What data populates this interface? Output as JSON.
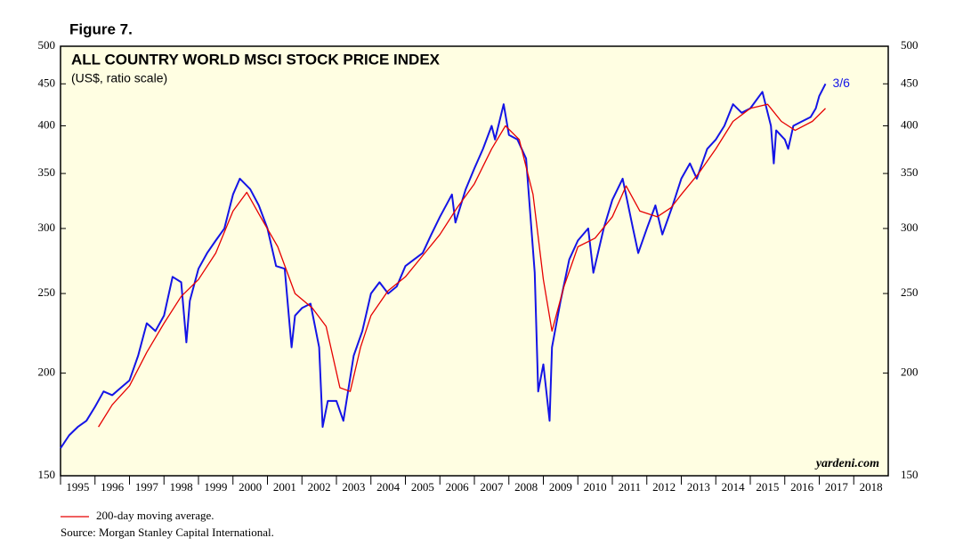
{
  "chart_data": {
    "type": "line",
    "figure_label": "Figure 7.",
    "title": "ALL COUNTRY WORLD MSCI STOCK PRICE INDEX",
    "subtitle": "(US$, ratio scale)",
    "annotation": "3/6",
    "watermark": "yardeni.com",
    "source": "Source: Morgan Stanley Capital International.",
    "log_scale": true,
    "xlim": [
      1995,
      2019
    ],
    "xticks": [
      {
        "value": 1995,
        "label": "1995"
      },
      {
        "value": 1996,
        "label": "1996"
      },
      {
        "value": 1997,
        "label": "1997"
      },
      {
        "value": 1998,
        "label": "1998"
      },
      {
        "value": 1999,
        "label": "1999"
      },
      {
        "value": 2000,
        "label": "2000"
      },
      {
        "value": 2001,
        "label": "2001"
      },
      {
        "value": 2002,
        "label": "2002"
      },
      {
        "value": 2003,
        "label": "2003"
      },
      {
        "value": 2004,
        "label": "2004"
      },
      {
        "value": 2005,
        "label": "2005"
      },
      {
        "value": 2006,
        "label": "2006"
      },
      {
        "value": 2007,
        "label": "2007"
      },
      {
        "value": 2008,
        "label": "2008"
      },
      {
        "value": 2009,
        "label": "2009"
      },
      {
        "value": 2010,
        "label": "2010"
      },
      {
        "value": 2011,
        "label": "2011"
      },
      {
        "value": 2012,
        "label": "2012"
      },
      {
        "value": 2013,
        "label": "2013"
      },
      {
        "value": 2014,
        "label": "2014"
      },
      {
        "value": 2015,
        "label": "2015"
      },
      {
        "value": 2016,
        "label": "2016"
      },
      {
        "value": 2017,
        "label": "2017"
      },
      {
        "value": 2018,
        "label": "2018"
      }
    ],
    "ylim": [
      150,
      500
    ],
    "yticks": [
      150,
      200,
      250,
      300,
      350,
      400,
      450,
      500
    ],
    "series": [
      {
        "color": "#1414e6",
        "x": [
          1995.0,
          1995.25,
          1995.5,
          1995.75,
          1996.0,
          1996.25,
          1996.5,
          1996.75,
          1997.0,
          1997.25,
          1997.5,
          1997.75,
          1998.0,
          1998.25,
          1998.5,
          1998.65,
          1998.75,
          1999.0,
          1999.25,
          1999.5,
          1999.75,
          2000.0,
          2000.2,
          2000.5,
          2000.75,
          2001.0,
          2001.25,
          2001.5,
          2001.7,
          2001.8,
          2002.0,
          2002.25,
          2002.5,
          2002.6,
          2002.75,
          2003.0,
          2003.2,
          2003.5,
          2003.75,
          2004.0,
          2004.25,
          2004.5,
          2004.75,
          2005.0,
          2005.25,
          2005.5,
          2005.75,
          2006.0,
          2006.35,
          2006.45,
          2006.75,
          2007.0,
          2007.25,
          2007.5,
          2007.6,
          2007.85,
          2008.0,
          2008.25,
          2008.5,
          2008.75,
          2008.85,
          2009.0,
          2009.18,
          2009.25,
          2009.5,
          2009.75,
          2010.0,
          2010.3,
          2010.45,
          2010.75,
          2011.0,
          2011.3,
          2011.6,
          2011.75,
          2012.0,
          2012.25,
          2012.45,
          2012.75,
          2013.0,
          2013.25,
          2013.45,
          2013.75,
          2014.0,
          2014.25,
          2014.5,
          2014.75,
          2015.0,
          2015.35,
          2015.6,
          2015.68,
          2015.75,
          2016.0,
          2016.1,
          2016.25,
          2016.5,
          2016.75,
          2016.9,
          2017.0,
          2017.18
        ],
        "values": [
          162,
          168,
          172,
          175,
          182,
          190,
          188,
          192,
          196,
          210,
          230,
          225,
          235,
          262,
          258,
          218,
          245,
          268,
          280,
          290,
          300,
          330,
          345,
          335,
          320,
          300,
          270,
          268,
          215,
          235,
          240,
          243,
          215,
          172,
          185,
          185,
          175,
          210,
          225,
          250,
          258,
          250,
          255,
          270,
          275,
          280,
          295,
          310,
          330,
          305,
          335,
          355,
          375,
          400,
          385,
          425,
          390,
          385,
          365,
          265,
          190,
          205,
          175,
          215,
          245,
          275,
          290,
          300,
          265,
          300,
          325,
          345,
          300,
          280,
          300,
          320,
          295,
          320,
          345,
          360,
          345,
          375,
          385,
          400,
          425,
          415,
          420,
          440,
          400,
          360,
          395,
          385,
          375,
          400,
          405,
          410,
          420,
          435,
          450
        ]
      },
      {
        "name": "200-day moving average.",
        "color": "#e60000",
        "x": [
          1996.1,
          1996.5,
          1997.0,
          1997.5,
          1998.0,
          1998.5,
          1999.0,
          1999.5,
          2000.0,
          2000.4,
          2000.8,
          2001.3,
          2001.8,
          2002.3,
          2002.7,
          2003.1,
          2003.4,
          2003.7,
          2004.0,
          2004.5,
          2005.0,
          2005.5,
          2006.0,
          2006.5,
          2007.0,
          2007.5,
          2007.9,
          2008.3,
          2008.7,
          2009.0,
          2009.25,
          2009.6,
          2010.0,
          2010.5,
          2011.0,
          2011.4,
          2011.8,
          2012.3,
          2012.7,
          2013.0,
          2013.5,
          2014.0,
          2014.5,
          2015.0,
          2015.5,
          2015.9,
          2016.3,
          2016.8,
          2017.18
        ],
        "values": [
          172,
          183,
          193,
          212,
          230,
          248,
          260,
          280,
          315,
          332,
          310,
          285,
          250,
          240,
          228,
          192,
          190,
          215,
          235,
          252,
          262,
          278,
          295,
          318,
          340,
          375,
          400,
          385,
          330,
          260,
          225,
          255,
          285,
          292,
          310,
          338,
          315,
          310,
          318,
          330,
          350,
          375,
          405,
          420,
          425,
          405,
          395,
          405,
          420
        ]
      }
    ]
  }
}
